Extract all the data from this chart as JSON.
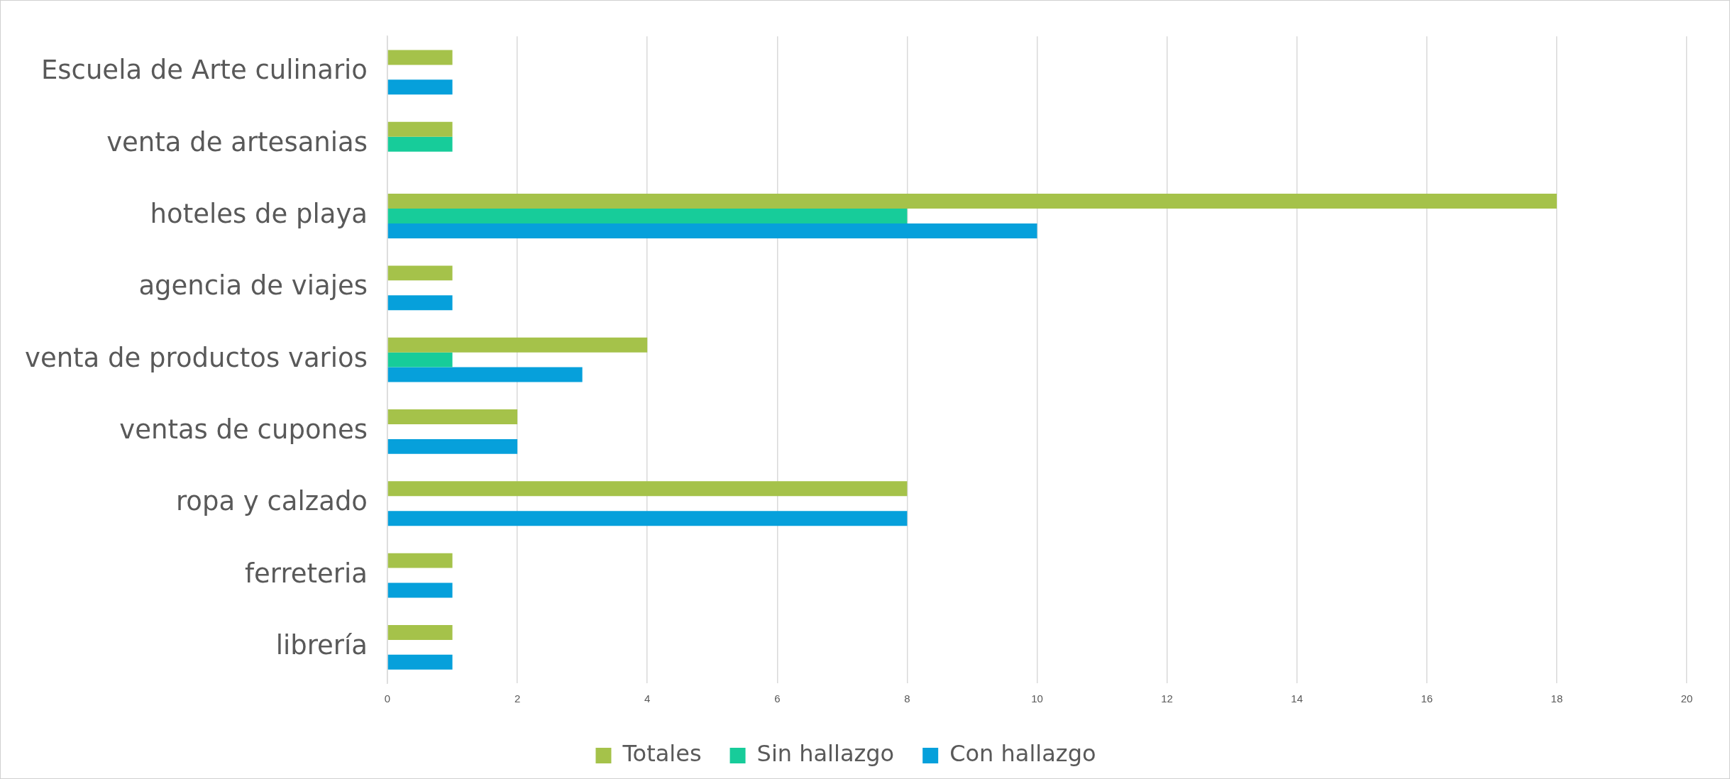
{
  "chart_data": {
    "type": "bar",
    "orientation": "horizontal",
    "categories": [
      "Escuela de Arte culinario",
      "venta de artesanias",
      "hoteles de playa",
      "agencia de viajes",
      "venta de productos varios",
      "ventas de cupones",
      "ropa y calzado",
      "ferreteria",
      "librería"
    ],
    "series": [
      {
        "name": "Totales",
        "color": "#a5c24a",
        "values": [
          1,
          1,
          18,
          1,
          4,
          2,
          8,
          1,
          1
        ]
      },
      {
        "name": "Sin hallazgo",
        "color": "#17cc9a",
        "values": [
          null,
          1,
          8,
          null,
          1,
          null,
          null,
          null,
          null
        ]
      },
      {
        "name": "Con hallazgo",
        "color": "#06a0db",
        "values": [
          1,
          null,
          10,
          1,
          3,
          2,
          8,
          1,
          1
        ]
      }
    ],
    "xlim": [
      0,
      20
    ],
    "xticks": [
      0,
      2,
      4,
      6,
      8,
      10,
      12,
      14,
      16,
      18,
      20
    ],
    "grid": "x",
    "legend": "bottom"
  }
}
